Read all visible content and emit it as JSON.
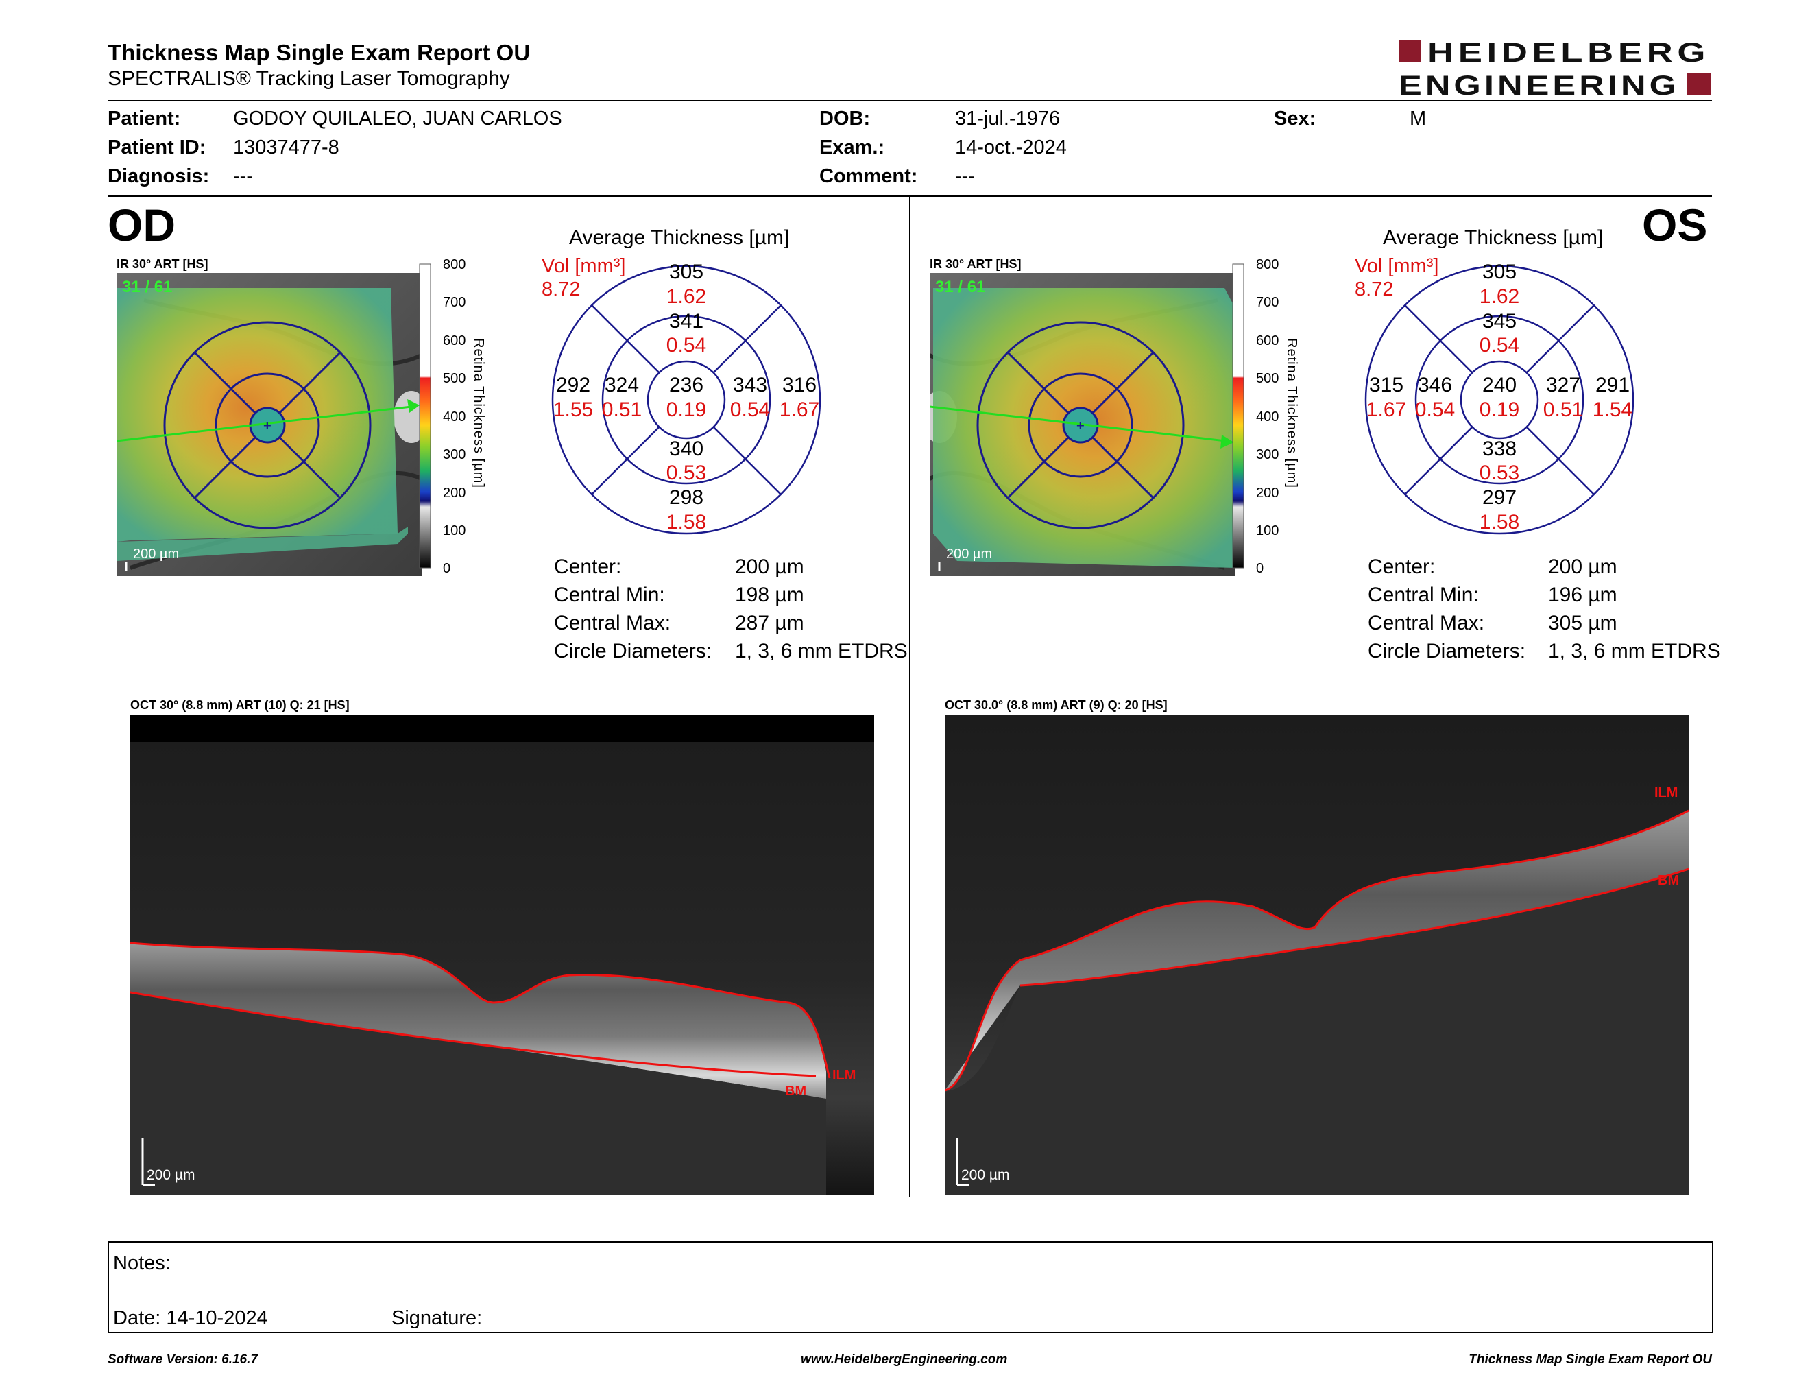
{
  "header": {
    "title": "Thickness Map Single Exam Report OU",
    "subtitle": "SPECTRALIS® Tracking Laser Tomography",
    "logo_line1": "HEIDELBERG",
    "logo_line2": "ENGINEERING",
    "logo_color": "#8b1a2b"
  },
  "patient": {
    "patient_label": "Patient:",
    "patient_value": "GODOY QUILALEO, JUAN CARLOS",
    "id_label": "Patient ID:",
    "id_value": "13037477-8",
    "diag_label": "Diagnosis:",
    "diag_value": "---",
    "dob_label": "DOB:",
    "dob_value": "31-jul.-1976",
    "exam_label": "Exam.:",
    "exam_value": "14-oct.-2024",
    "comment_label": "Comment:",
    "comment_value": "---",
    "sex_label": "Sex:",
    "sex_value": "M"
  },
  "scale": {
    "ticks": [
      "800",
      "700",
      "600",
      "500",
      "400",
      "300",
      "200",
      "100",
      "0"
    ],
    "label": "Retina Thickness [µm]"
  },
  "od": {
    "eye": "OD",
    "ir_label": "IR 30° ART [HS]",
    "frame": "31 / 61",
    "scalebar": "200 µm",
    "avg_title": "Average Thickness [µm]",
    "vol_label": "Vol [mm³]",
    "vol_value": "8.72",
    "grid": {
      "center": {
        "t": "236",
        "v": "0.19"
      },
      "inner_sup": {
        "t": "341",
        "v": "0.54"
      },
      "inner_inf": {
        "t": "340",
        "v": "0.53"
      },
      "inner_left": {
        "t": "324",
        "v": "0.51"
      },
      "inner_right": {
        "t": "343",
        "v": "0.54"
      },
      "outer_sup": {
        "t": "305",
        "v": "1.62"
      },
      "outer_inf": {
        "t": "298",
        "v": "1.58"
      },
      "outer_left": {
        "t": "292",
        "v": "1.55"
      },
      "outer_right": {
        "t": "316",
        "v": "1.67"
      }
    },
    "stats": {
      "center_label": "Center:",
      "center_value": "200 µm",
      "min_label": "Central Min:",
      "min_value": "198 µm",
      "max_label": "Central Max:",
      "max_value": "287 µm",
      "diam_label": "Circle Diameters:",
      "diam_value": "1, 3, 6 mm ETDRS"
    },
    "oct_label": "OCT 30° (8.8 mm) ART (10) Q: 21 [HS]",
    "oct_scalebar": "200 µm",
    "ilm": "ILM",
    "bm": "BM"
  },
  "os": {
    "eye": "OS",
    "ir_label": "IR 30° ART [HS]",
    "frame": "31 / 61",
    "scalebar": "200 µm",
    "avg_title": "Average Thickness [µm]",
    "vol_label": "Vol [mm³]",
    "vol_value": "8.72",
    "grid": {
      "center": {
        "t": "240",
        "v": "0.19"
      },
      "inner_sup": {
        "t": "345",
        "v": "0.54"
      },
      "inner_inf": {
        "t": "338",
        "v": "0.53"
      },
      "inner_left": {
        "t": "346",
        "v": "0.54"
      },
      "inner_right": {
        "t": "327",
        "v": "0.51"
      },
      "outer_sup": {
        "t": "305",
        "v": "1.62"
      },
      "outer_inf": {
        "t": "297",
        "v": "1.58"
      },
      "outer_left": {
        "t": "315",
        "v": "1.67"
      },
      "outer_right": {
        "t": "291",
        "v": "1.54"
      }
    },
    "stats": {
      "center_label": "Center:",
      "center_value": "200 µm",
      "min_label": "Central Min:",
      "min_value": "196 µm",
      "max_label": "Central Max:",
      "max_value": "305 µm",
      "diam_label": "Circle Diameters:",
      "diam_value": "1, 3, 6 mm ETDRS"
    },
    "oct_label": "OCT 30.0° (8.8 mm) ART (9) Q: 20 [HS]",
    "oct_scalebar": "200 µm",
    "ilm": "ILM",
    "bm": "BM"
  },
  "notes": {
    "notes_label": "Notes:",
    "date_label": "Date: 14-10-2024",
    "signature_label": "Signature:"
  },
  "footer": {
    "software": "Software Version: 6.16.7",
    "url": "www.HeidelbergEngineering.com",
    "report": "Thickness Map Single Exam Report OU"
  }
}
